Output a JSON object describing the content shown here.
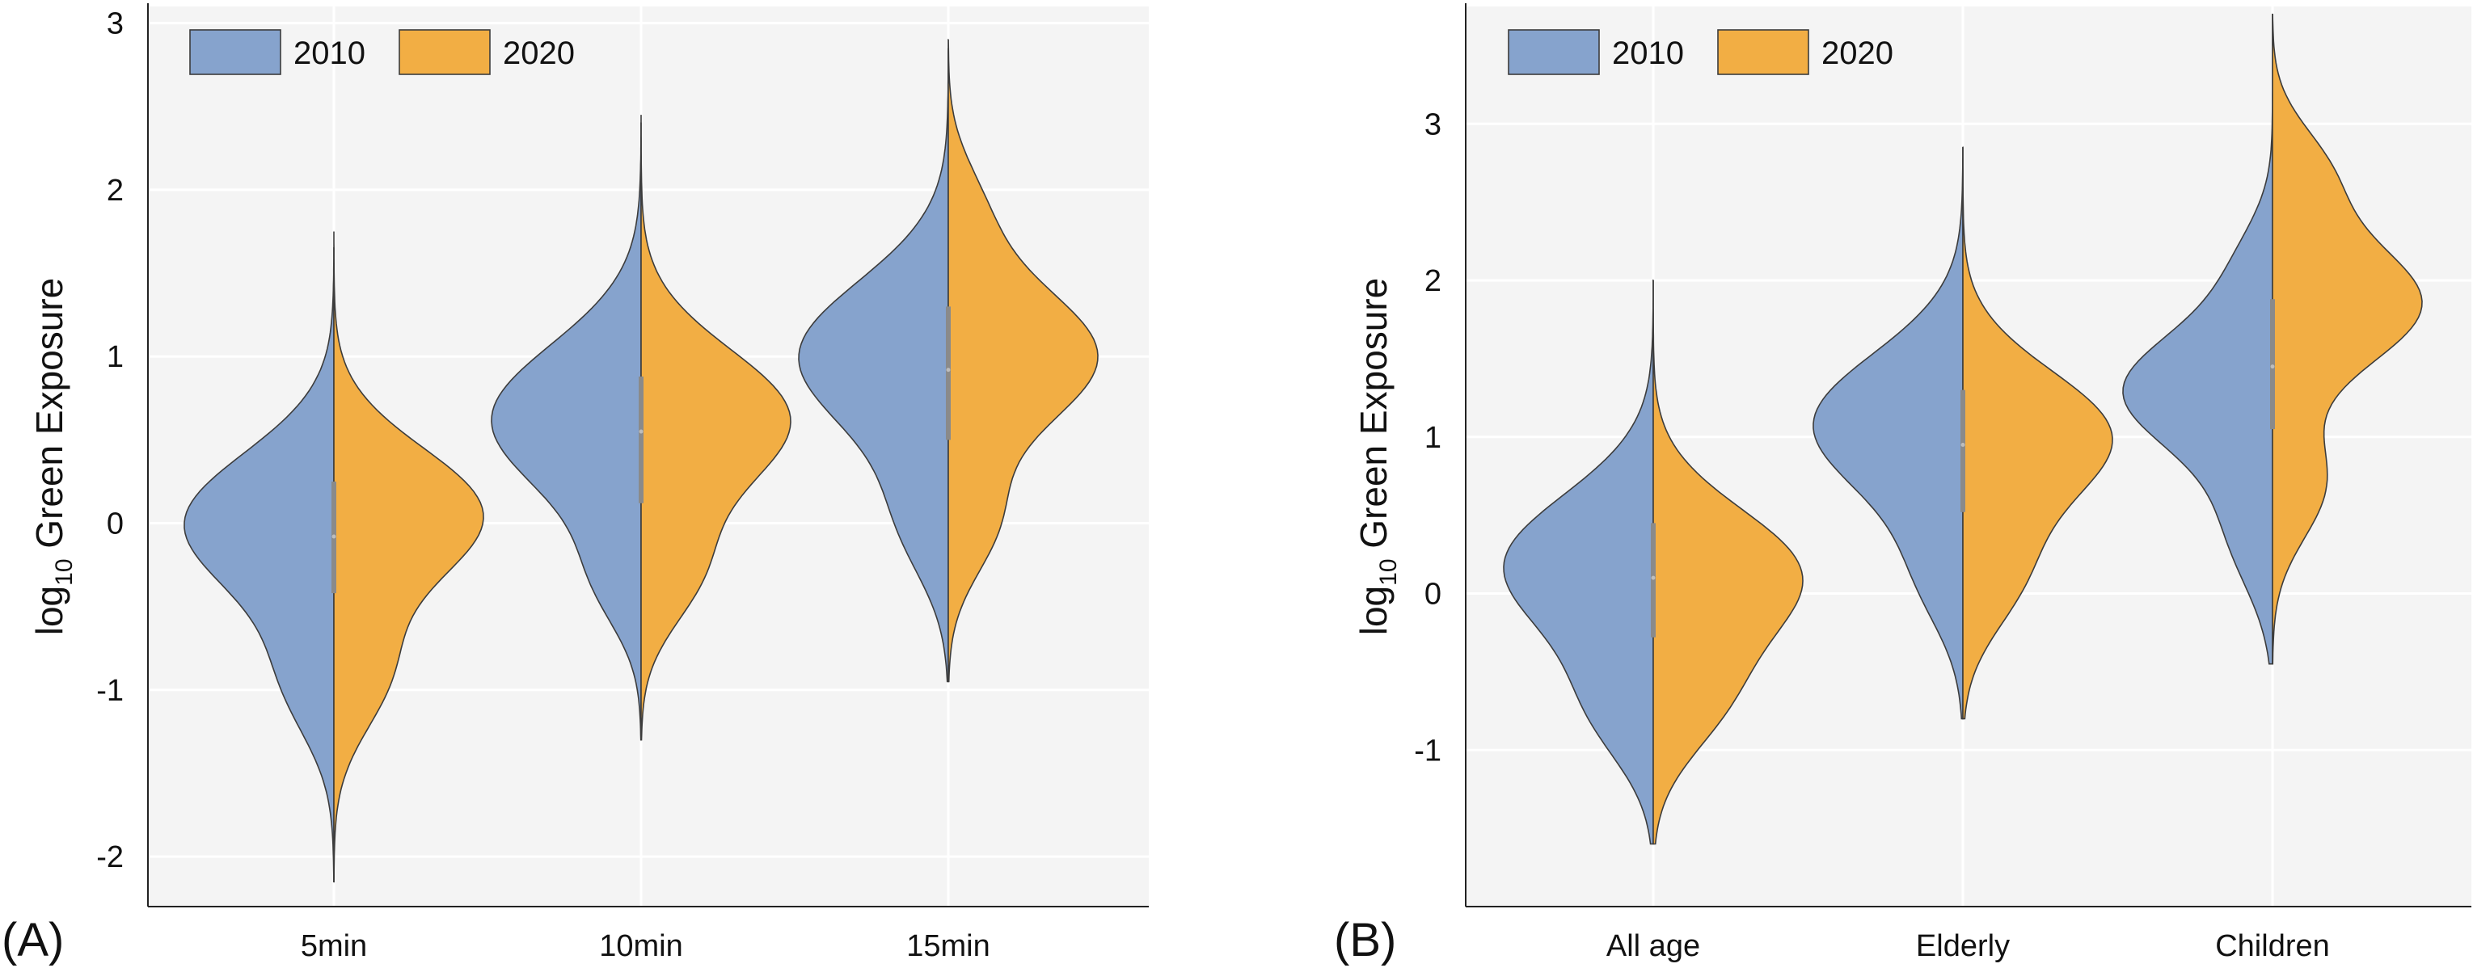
{
  "colors": {
    "series_2010": "#86a3cd",
    "series_2020": "#f2ae44",
    "plot_background": "#f4f4f4",
    "grid": "#ffffff",
    "outline": "#3c3c3c",
    "box": "#8a8a8a"
  },
  "chart_data": [
    {
      "panel_label": "(A)",
      "type": "violin",
      "split": true,
      "ylabel_main": "log",
      "ylabel_sub": "10",
      "ylabel_rest": " Green Exposure",
      "xlabel": "",
      "categories": [
        "5min",
        "10min",
        "15min"
      ],
      "yticks": [
        "-2",
        "-1",
        "0",
        "1",
        "2",
        "3"
      ],
      "ytick_values": [
        -2,
        -1,
        0,
        1,
        2,
        3
      ],
      "ylim": [
        -2.3,
        3.1
      ],
      "grid": true,
      "legend_position": "top-left",
      "series": [
        {
          "name": "2010",
          "distributions": [
            {
              "min": -2.15,
              "max": 1.65,
              "median": -0.08,
              "q1": -0.42,
              "q3": 0.25,
              "modes": [
                {
                  "mu": 0.0,
                  "s": 0.42,
                  "w": 1.0
                },
                {
                  "mu": -0.95,
                  "s": 0.35,
                  "w": 0.3
                }
              ]
            },
            {
              "min": -1.3,
              "max": 2.4,
              "median": 0.55,
              "q1": 0.12,
              "q3": 0.88,
              "modes": [
                {
                  "mu": 0.62,
                  "s": 0.45,
                  "w": 1.0
                },
                {
                  "mu": -0.35,
                  "s": 0.3,
                  "w": 0.25
                }
              ]
            },
            {
              "min": -0.95,
              "max": 2.85,
              "median": 0.92,
              "q1": 0.5,
              "q3": 1.3,
              "modes": [
                {
                  "mu": 1.0,
                  "s": 0.45,
                  "w": 1.0
                },
                {
                  "mu": 0.0,
                  "s": 0.35,
                  "w": 0.28
                }
              ]
            }
          ]
        },
        {
          "name": "2020",
          "distributions": [
            {
              "min": -2.15,
              "max": 1.75,
              "median": -0.08,
              "q1": -0.42,
              "q3": 0.25,
              "modes": [
                {
                  "mu": 0.05,
                  "s": 0.4,
                  "w": 1.0
                },
                {
                  "mu": -0.9,
                  "s": 0.35,
                  "w": 0.35
                }
              ]
            },
            {
              "min": -1.3,
              "max": 2.45,
              "median": 0.55,
              "q1": 0.12,
              "q3": 0.88,
              "modes": [
                {
                  "mu": 0.62,
                  "s": 0.42,
                  "w": 1.0
                },
                {
                  "mu": -0.3,
                  "s": 0.32,
                  "w": 0.35
                }
              ]
            },
            {
              "min": -0.95,
              "max": 2.9,
              "median": 0.92,
              "q1": 0.5,
              "q3": 1.3,
              "modes": [
                {
                  "mu": 1.0,
                  "s": 0.42,
                  "w": 1.0
                },
                {
                  "mu": 1.9,
                  "s": 0.3,
                  "w": 0.18
                },
                {
                  "mu": 0.0,
                  "s": 0.32,
                  "w": 0.3
                }
              ]
            }
          ]
        }
      ]
    },
    {
      "panel_label": "(B)",
      "type": "violin",
      "split": true,
      "ylabel_main": "log",
      "ylabel_sub": "10",
      "ylabel_rest": " Green Exposure",
      "xlabel": "",
      "categories": [
        "All age",
        "Elderly",
        "Children"
      ],
      "yticks": [
        "-1",
        "0",
        "1",
        "2",
        "3"
      ],
      "ytick_values": [
        -1,
        0,
        1,
        2,
        3
      ],
      "ylim": [
        -2.0,
        3.75
      ],
      "grid": true,
      "legend_position": "top-left",
      "series": [
        {
          "name": "2010",
          "distributions": [
            {
              "min": -1.6,
              "max": 2.0,
              "median": 0.1,
              "q1": -0.28,
              "q3": 0.45,
              "modes": [
                {
                  "mu": 0.18,
                  "s": 0.45,
                  "w": 1.0
                },
                {
                  "mu": -0.75,
                  "s": 0.35,
                  "w": 0.35
                }
              ]
            },
            {
              "min": -0.8,
              "max": 2.85,
              "median": 0.95,
              "q1": 0.52,
              "q3": 1.3,
              "modes": [
                {
                  "mu": 1.08,
                  "s": 0.45,
                  "w": 1.0
                },
                {
                  "mu": 0.1,
                  "s": 0.35,
                  "w": 0.25
                }
              ]
            },
            {
              "min": -0.45,
              "max": 3.7,
              "median": 1.45,
              "q1": 1.05,
              "q3": 1.88,
              "modes": [
                {
                  "mu": 1.3,
                  "s": 0.38,
                  "w": 1.0
                },
                {
                  "mu": 0.4,
                  "s": 0.38,
                  "w": 0.28
                },
                {
                  "mu": 2.1,
                  "s": 0.3,
                  "w": 0.2
                }
              ]
            }
          ]
        },
        {
          "name": "2020",
          "distributions": [
            {
              "min": -1.6,
              "max": 2.0,
              "median": 0.1,
              "q1": -0.28,
              "q3": 0.45,
              "modes": [
                {
                  "mu": 0.12,
                  "s": 0.42,
                  "w": 1.0
                },
                {
                  "mu": -0.7,
                  "s": 0.35,
                  "w": 0.4
                }
              ]
            },
            {
              "min": -0.8,
              "max": 2.85,
              "median": 0.95,
              "q1": 0.52,
              "q3": 1.3,
              "modes": [
                {
                  "mu": 1.0,
                  "s": 0.42,
                  "w": 1.0
                },
                {
                  "mu": 0.1,
                  "s": 0.35,
                  "w": 0.35
                }
              ]
            },
            {
              "min": -0.45,
              "max": 3.7,
              "median": 1.45,
              "q1": 1.05,
              "q3": 1.88,
              "modes": [
                {
                  "mu": 1.85,
                  "s": 0.4,
                  "w": 1.0
                },
                {
                  "mu": 2.7,
                  "s": 0.3,
                  "w": 0.32
                },
                {
                  "mu": 0.7,
                  "s": 0.35,
                  "w": 0.35
                }
              ]
            }
          ]
        }
      ]
    }
  ]
}
